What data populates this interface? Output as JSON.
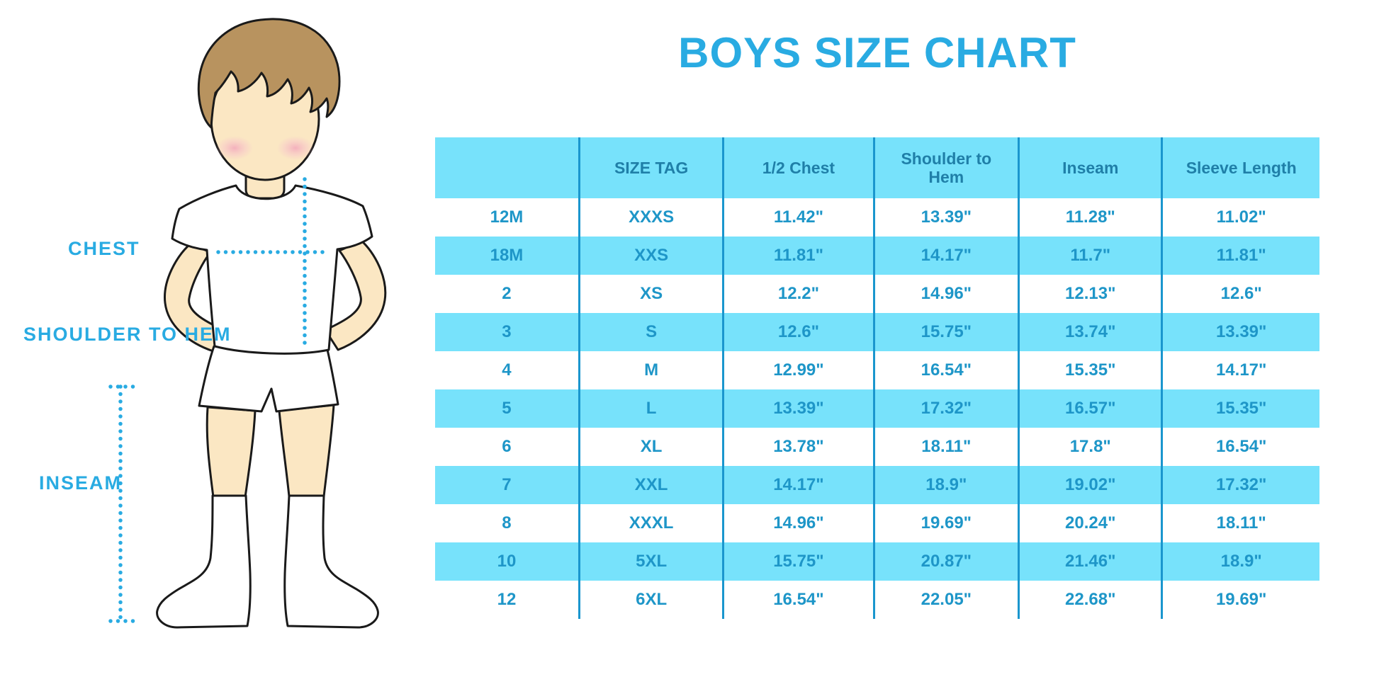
{
  "title": "BOYS SIZE CHART",
  "diagram": {
    "labels": {
      "chest": "CHEST",
      "shoulder_to_hem": "SHOULDER TO HEM",
      "inseam": "INSEAM"
    },
    "colors": {
      "accent": "#29ABE2",
      "skin": "#FBE7C3",
      "hair": "#B8935F",
      "blush": "#F2A3BB",
      "outline": "#1A1A1A"
    }
  },
  "chart_data": {
    "type": "table",
    "title": "BOYS SIZE CHART",
    "columns": [
      "",
      "SIZE TAG",
      "1/2 Chest",
      "Shoulder to Hem",
      "Inseam",
      "Sleeve Length"
    ],
    "rows": [
      [
        "12M",
        "XXXS",
        "11.42\"",
        "13.39\"",
        "11.28\"",
        "11.02\""
      ],
      [
        "18M",
        "XXS",
        "11.81\"",
        "14.17\"",
        "11.7\"",
        "11.81\""
      ],
      [
        "2",
        "XS",
        "12.2\"",
        "14.96\"",
        "12.13\"",
        "12.6\""
      ],
      [
        "3",
        "S",
        "12.6\"",
        "15.75\"",
        "13.74\"",
        "13.39\""
      ],
      [
        "4",
        "M",
        "12.99\"",
        "16.54\"",
        "15.35\"",
        "14.17\""
      ],
      [
        "5",
        "L",
        "13.39\"",
        "17.32\"",
        "16.57\"",
        "15.35\""
      ],
      [
        "6",
        "XL",
        "13.78\"",
        "18.11\"",
        "17.8\"",
        "16.54\""
      ],
      [
        "7",
        "XXL",
        "14.17\"",
        "18.9\"",
        "19.02\"",
        "17.32\""
      ],
      [
        "8",
        "XXXL",
        "14.96\"",
        "19.69\"",
        "20.24\"",
        "18.11\""
      ],
      [
        "10",
        "5XL",
        "15.75\"",
        "20.87\"",
        "21.46\"",
        "18.9\""
      ],
      [
        "12",
        "6XL",
        "16.54\"",
        "22.05\"",
        "22.68\"",
        "19.69\""
      ]
    ],
    "colors": {
      "band": "#77E2FB",
      "header_text": "#1F7FA8",
      "body_text": "#1E96C8",
      "separator": "#1A96CE"
    },
    "layout": {
      "striped_rows": true,
      "vertical_separators": true,
      "horizontal_gridlines": false
    }
  }
}
